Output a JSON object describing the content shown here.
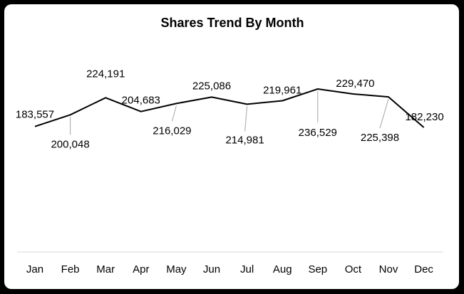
{
  "chart_data": {
    "type": "line",
    "title": "Shares Trend By Month",
    "categories": [
      "Jan",
      "Feb",
      "Mar",
      "Apr",
      "May",
      "Jun",
      "Jul",
      "Aug",
      "Sep",
      "Oct",
      "Nov",
      "Dec"
    ],
    "series": [
      {
        "values": [
          183557,
          200048,
          224191,
          204683,
          216029,
          225086,
          214981,
          219961,
          236529,
          229470,
          225398,
          182230
        ],
        "data_labels": [
          "183,557",
          "200,048",
          "224,191",
          "204,683",
          "216,029",
          "225,086",
          "214,981",
          "219,961",
          "236,529",
          "229,470",
          "225,398",
          "182,230"
        ]
      }
    ],
    "xlabel": "",
    "ylabel": "",
    "grid": false,
    "legend": "none",
    "colors": {
      "line": "#000000",
      "leader": "#a6a6a6",
      "axis": "#d9d9d9",
      "background": "#ffffff",
      "border": "#000000"
    }
  }
}
